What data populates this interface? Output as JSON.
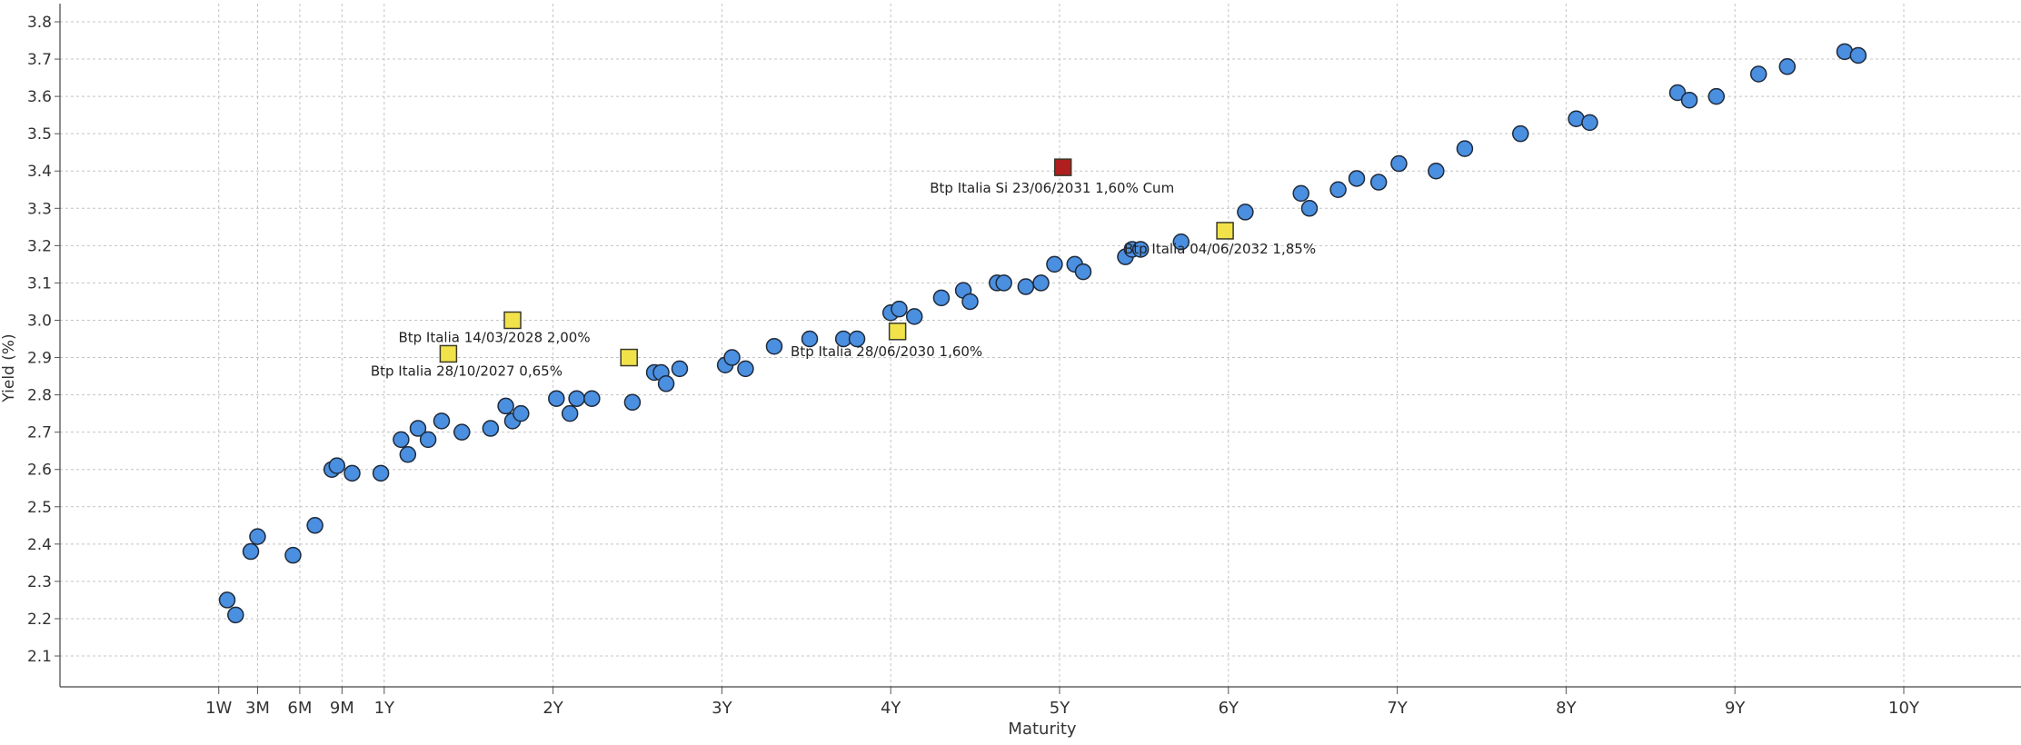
{
  "chart_data": {
    "type": "scatter",
    "title": "",
    "xlabel": "Maturity",
    "ylabel": "Yield (%)",
    "xlim": [
      0,
      10.5
    ],
    "ylim": [
      2.05,
      3.85
    ],
    "grid": true,
    "x_ticks": [
      {
        "label": "1W",
        "value": 0.02
      },
      {
        "label": "3M",
        "value": 0.25
      },
      {
        "label": "6M",
        "value": 0.5
      },
      {
        "label": "9M",
        "value": 0.75
      },
      {
        "label": "1Y",
        "value": 1
      },
      {
        "label": "2Y",
        "value": 2
      },
      {
        "label": "3Y",
        "value": 3
      },
      {
        "label": "4Y",
        "value": 4
      },
      {
        "label": "5Y",
        "value": 5
      },
      {
        "label": "6Y",
        "value": 6
      },
      {
        "label": "7Y",
        "value": 7
      },
      {
        "label": "8Y",
        "value": 8
      },
      {
        "label": "9Y",
        "value": 9
      },
      {
        "label": "10Y",
        "value": 10
      }
    ],
    "y_ticks": [
      2.1,
      2.2,
      2.3,
      2.4,
      2.5,
      2.6,
      2.7,
      2.8,
      2.9,
      3.0,
      3.1,
      3.2,
      3.3,
      3.4,
      3.5,
      3.6,
      3.7,
      3.8
    ],
    "series": [
      {
        "color": "#4a8fe0",
        "marker": "circle",
        "points": [
          {
            "x": 0.07,
            "y": 2.25
          },
          {
            "x": 0.12,
            "y": 2.21
          },
          {
            "x": 0.21,
            "y": 2.38
          },
          {
            "x": 0.25,
            "y": 2.42
          },
          {
            "x": 0.46,
            "y": 2.37
          },
          {
            "x": 0.59,
            "y": 2.45
          },
          {
            "x": 0.69,
            "y": 2.6
          },
          {
            "x": 0.72,
            "y": 2.61
          },
          {
            "x": 0.81,
            "y": 2.59
          },
          {
            "x": 0.98,
            "y": 2.59
          },
          {
            "x": 1.1,
            "y": 2.68
          },
          {
            "x": 1.14,
            "y": 2.64
          },
          {
            "x": 1.2,
            "y": 2.71
          },
          {
            "x": 1.26,
            "y": 2.68
          },
          {
            "x": 1.34,
            "y": 2.73
          },
          {
            "x": 1.46,
            "y": 2.7
          },
          {
            "x": 1.63,
            "y": 2.71
          },
          {
            "x": 1.72,
            "y": 2.77
          },
          {
            "x": 1.76,
            "y": 2.73
          },
          {
            "x": 1.81,
            "y": 2.75
          },
          {
            "x": 2.02,
            "y": 2.79
          },
          {
            "x": 2.1,
            "y": 2.75
          },
          {
            "x": 2.14,
            "y": 2.79
          },
          {
            "x": 2.23,
            "y": 2.79
          },
          {
            "x": 2.47,
            "y": 2.78
          },
          {
            "x": 2.6,
            "y": 2.86
          },
          {
            "x": 2.64,
            "y": 2.86
          },
          {
            "x": 2.67,
            "y": 2.83
          },
          {
            "x": 2.75,
            "y": 2.87
          },
          {
            "x": 3.02,
            "y": 2.88
          },
          {
            "x": 3.06,
            "y": 2.9
          },
          {
            "x": 3.14,
            "y": 2.87
          },
          {
            "x": 3.31,
            "y": 2.93
          },
          {
            "x": 3.52,
            "y": 2.95
          },
          {
            "x": 3.72,
            "y": 2.95
          },
          {
            "x": 3.8,
            "y": 2.95
          },
          {
            "x": 4.0,
            "y": 3.02
          },
          {
            "x": 4.05,
            "y": 3.03
          },
          {
            "x": 4.14,
            "y": 3.01
          },
          {
            "x": 4.3,
            "y": 3.06
          },
          {
            "x": 4.43,
            "y": 3.08
          },
          {
            "x": 4.47,
            "y": 3.05
          },
          {
            "x": 4.63,
            "y": 3.1
          },
          {
            "x": 4.67,
            "y": 3.1
          },
          {
            "x": 4.8,
            "y": 3.09
          },
          {
            "x": 4.89,
            "y": 3.1
          },
          {
            "x": 4.97,
            "y": 3.15
          },
          {
            "x": 5.09,
            "y": 3.15
          },
          {
            "x": 5.14,
            "y": 3.13
          },
          {
            "x": 5.39,
            "y": 3.17
          },
          {
            "x": 5.43,
            "y": 3.19
          },
          {
            "x": 5.48,
            "y": 3.19
          },
          {
            "x": 5.72,
            "y": 3.21
          },
          {
            "x": 6.1,
            "y": 3.29
          },
          {
            "x": 6.43,
            "y": 3.34
          },
          {
            "x": 6.48,
            "y": 3.3
          },
          {
            "x": 6.65,
            "y": 3.35
          },
          {
            "x": 6.76,
            "y": 3.38
          },
          {
            "x": 6.89,
            "y": 3.37
          },
          {
            "x": 7.01,
            "y": 3.42
          },
          {
            "x": 7.23,
            "y": 3.4
          },
          {
            "x": 7.4,
            "y": 3.46
          },
          {
            "x": 7.73,
            "y": 3.5
          },
          {
            "x": 8.06,
            "y": 3.54
          },
          {
            "x": 8.14,
            "y": 3.53
          },
          {
            "x": 8.66,
            "y": 3.61
          },
          {
            "x": 8.73,
            "y": 3.59
          },
          {
            "x": 8.89,
            "y": 3.6
          },
          {
            "x": 9.14,
            "y": 3.66
          },
          {
            "x": 9.31,
            "y": 3.68
          },
          {
            "x": 9.65,
            "y": 3.72
          },
          {
            "x": 9.73,
            "y": 3.71
          }
        ]
      },
      {
        "color": "#f2e24a",
        "marker": "square",
        "points": [
          {
            "x": 1.38,
            "y": 2.91,
            "label": "Btp Italia 28/10/2027 0,65%"
          },
          {
            "x": 1.76,
            "y": 3.0,
            "label": "Btp Italia 14/03/2028 2,00%"
          },
          {
            "x": 2.45,
            "y": 2.9
          },
          {
            "x": 4.04,
            "y": 2.97,
            "label": "Btp Italia 28/06/2030 1,60%"
          },
          {
            "x": 5.98,
            "y": 3.24,
            "label": "Btp Italia 04/06/2032 1,85%"
          }
        ]
      },
      {
        "color": "#b01e1e",
        "marker": "square",
        "points": [
          {
            "x": 5.02,
            "y": 3.41,
            "label": "Btp Italia Si 23/06/2031 1,60% Cum"
          }
        ]
      }
    ]
  }
}
